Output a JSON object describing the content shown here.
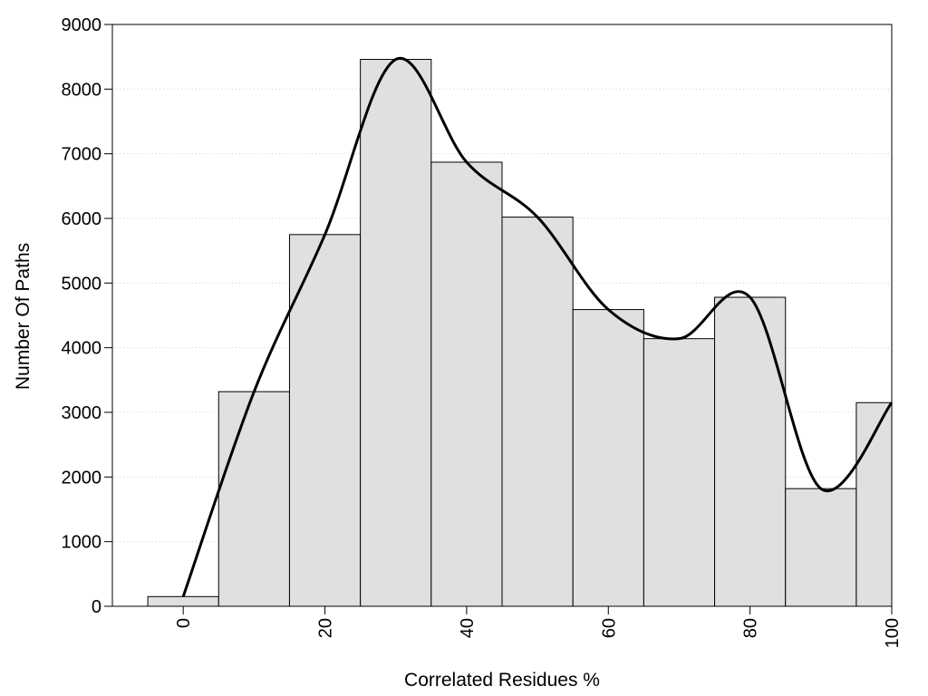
{
  "chart_data": {
    "type": "bar",
    "title": "",
    "xlabel": "Correlated Residues %",
    "ylabel": "Number Of Paths",
    "x": [
      0,
      10,
      20,
      30,
      40,
      50,
      60,
      70,
      80,
      90,
      100
    ],
    "values": [
      150,
      3320,
      5750,
      8460,
      6870,
      6020,
      4590,
      4140,
      4780,
      1820,
      3150
    ],
    "bin_width": 10,
    "xlim": [
      -10,
      100
    ],
    "ylim": [
      0,
      9000
    ],
    "xticks": [
      0,
      20,
      40,
      60,
      80,
      100
    ],
    "yticks": [
      0,
      1000,
      2000,
      3000,
      4000,
      5000,
      6000,
      7000,
      8000,
      9000
    ],
    "xtick_labels": [
      "0",
      "20",
      "40",
      "60",
      "80",
      "100"
    ],
    "ytick_labels": [
      "0",
      "1000",
      "2000",
      "3000",
      "4000",
      "5000",
      "6000",
      "7000",
      "8000",
      "9000"
    ],
    "grid": "horizontal dotted",
    "bar_color": "#e0e0e0",
    "bar_edge_color": "#000000",
    "curve": {
      "type": "smooth line",
      "color": "#000000",
      "x": [
        0,
        10,
        20,
        30,
        40,
        50,
        60,
        70,
        80,
        90,
        100
      ],
      "y": [
        150,
        3320,
        5750,
        8460,
        6870,
        6020,
        4590,
        4140,
        4780,
        1820,
        3150
      ]
    }
  }
}
